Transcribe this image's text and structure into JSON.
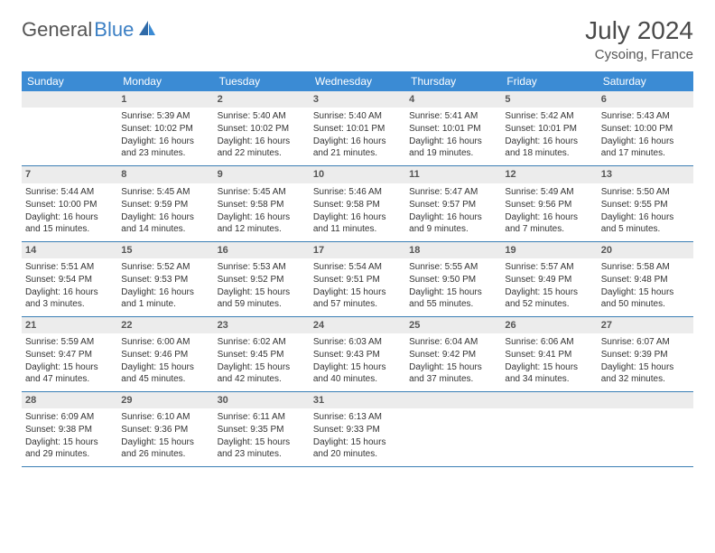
{
  "brand": {
    "name_a": "General",
    "name_b": "Blue"
  },
  "title": {
    "month": "July 2024",
    "location": "Cysoing, France"
  },
  "colors": {
    "header_bg": "#3b8bd4",
    "border": "#3b7fb5",
    "daynum_bg": "#ececec",
    "empty_bg": "#f0f0f0",
    "text": "#333333",
    "brand_gray": "#555555",
    "brand_blue": "#3b7fc4"
  },
  "weekdays": [
    "Sunday",
    "Monday",
    "Tuesday",
    "Wednesday",
    "Thursday",
    "Friday",
    "Saturday"
  ],
  "start_offset": 1,
  "days": [
    {
      "n": 1,
      "sunrise": "5:39 AM",
      "sunset": "10:02 PM",
      "daylight": "16 hours and 23 minutes."
    },
    {
      "n": 2,
      "sunrise": "5:40 AM",
      "sunset": "10:02 PM",
      "daylight": "16 hours and 22 minutes."
    },
    {
      "n": 3,
      "sunrise": "5:40 AM",
      "sunset": "10:01 PM",
      "daylight": "16 hours and 21 minutes."
    },
    {
      "n": 4,
      "sunrise": "5:41 AM",
      "sunset": "10:01 PM",
      "daylight": "16 hours and 19 minutes."
    },
    {
      "n": 5,
      "sunrise": "5:42 AM",
      "sunset": "10:01 PM",
      "daylight": "16 hours and 18 minutes."
    },
    {
      "n": 6,
      "sunrise": "5:43 AM",
      "sunset": "10:00 PM",
      "daylight": "16 hours and 17 minutes."
    },
    {
      "n": 7,
      "sunrise": "5:44 AM",
      "sunset": "10:00 PM",
      "daylight": "16 hours and 15 minutes."
    },
    {
      "n": 8,
      "sunrise": "5:45 AM",
      "sunset": "9:59 PM",
      "daylight": "16 hours and 14 minutes."
    },
    {
      "n": 9,
      "sunrise": "5:45 AM",
      "sunset": "9:58 PM",
      "daylight": "16 hours and 12 minutes."
    },
    {
      "n": 10,
      "sunrise": "5:46 AM",
      "sunset": "9:58 PM",
      "daylight": "16 hours and 11 minutes."
    },
    {
      "n": 11,
      "sunrise": "5:47 AM",
      "sunset": "9:57 PM",
      "daylight": "16 hours and 9 minutes."
    },
    {
      "n": 12,
      "sunrise": "5:49 AM",
      "sunset": "9:56 PM",
      "daylight": "16 hours and 7 minutes."
    },
    {
      "n": 13,
      "sunrise": "5:50 AM",
      "sunset": "9:55 PM",
      "daylight": "16 hours and 5 minutes."
    },
    {
      "n": 14,
      "sunrise": "5:51 AM",
      "sunset": "9:54 PM",
      "daylight": "16 hours and 3 minutes."
    },
    {
      "n": 15,
      "sunrise": "5:52 AM",
      "sunset": "9:53 PM",
      "daylight": "16 hours and 1 minute."
    },
    {
      "n": 16,
      "sunrise": "5:53 AM",
      "sunset": "9:52 PM",
      "daylight": "15 hours and 59 minutes."
    },
    {
      "n": 17,
      "sunrise": "5:54 AM",
      "sunset": "9:51 PM",
      "daylight": "15 hours and 57 minutes."
    },
    {
      "n": 18,
      "sunrise": "5:55 AM",
      "sunset": "9:50 PM",
      "daylight": "15 hours and 55 minutes."
    },
    {
      "n": 19,
      "sunrise": "5:57 AM",
      "sunset": "9:49 PM",
      "daylight": "15 hours and 52 minutes."
    },
    {
      "n": 20,
      "sunrise": "5:58 AM",
      "sunset": "9:48 PM",
      "daylight": "15 hours and 50 minutes."
    },
    {
      "n": 21,
      "sunrise": "5:59 AM",
      "sunset": "9:47 PM",
      "daylight": "15 hours and 47 minutes."
    },
    {
      "n": 22,
      "sunrise": "6:00 AM",
      "sunset": "9:46 PM",
      "daylight": "15 hours and 45 minutes."
    },
    {
      "n": 23,
      "sunrise": "6:02 AM",
      "sunset": "9:45 PM",
      "daylight": "15 hours and 42 minutes."
    },
    {
      "n": 24,
      "sunrise": "6:03 AM",
      "sunset": "9:43 PM",
      "daylight": "15 hours and 40 minutes."
    },
    {
      "n": 25,
      "sunrise": "6:04 AM",
      "sunset": "9:42 PM",
      "daylight": "15 hours and 37 minutes."
    },
    {
      "n": 26,
      "sunrise": "6:06 AM",
      "sunset": "9:41 PM",
      "daylight": "15 hours and 34 minutes."
    },
    {
      "n": 27,
      "sunrise": "6:07 AM",
      "sunset": "9:39 PM",
      "daylight": "15 hours and 32 minutes."
    },
    {
      "n": 28,
      "sunrise": "6:09 AM",
      "sunset": "9:38 PM",
      "daylight": "15 hours and 29 minutes."
    },
    {
      "n": 29,
      "sunrise": "6:10 AM",
      "sunset": "9:36 PM",
      "daylight": "15 hours and 26 minutes."
    },
    {
      "n": 30,
      "sunrise": "6:11 AM",
      "sunset": "9:35 PM",
      "daylight": "15 hours and 23 minutes."
    },
    {
      "n": 31,
      "sunrise": "6:13 AM",
      "sunset": "9:33 PM",
      "daylight": "15 hours and 20 minutes."
    }
  ],
  "labels": {
    "sunrise": "Sunrise: ",
    "sunset": "Sunset: ",
    "daylight": "Daylight: "
  }
}
